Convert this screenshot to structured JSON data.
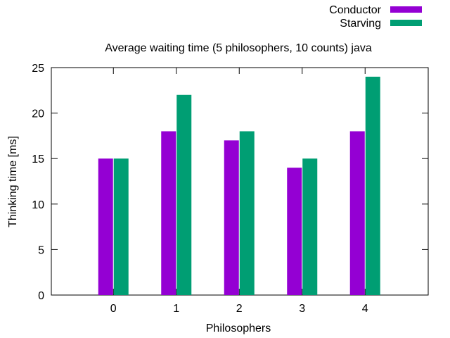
{
  "chart_data": {
    "type": "bar",
    "title": "Average waiting time (5 philosophers, 10 counts) java",
    "xlabel": "Philosophers",
    "ylabel": "Thinking time [ms]",
    "categories": [
      "0",
      "1",
      "2",
      "3",
      "4"
    ],
    "series": [
      {
        "name": "Conductor",
        "color": "#9400d3",
        "values": [
          15,
          18,
          17,
          14,
          18
        ]
      },
      {
        "name": "Starving",
        "color": "#009e73",
        "values": [
          15,
          22,
          18,
          15,
          24
        ]
      }
    ],
    "ylim": [
      0,
      25
    ],
    "yticks": [
      0,
      5,
      10,
      15,
      20,
      25
    ],
    "legend_position": "top-right",
    "grid": false
  }
}
